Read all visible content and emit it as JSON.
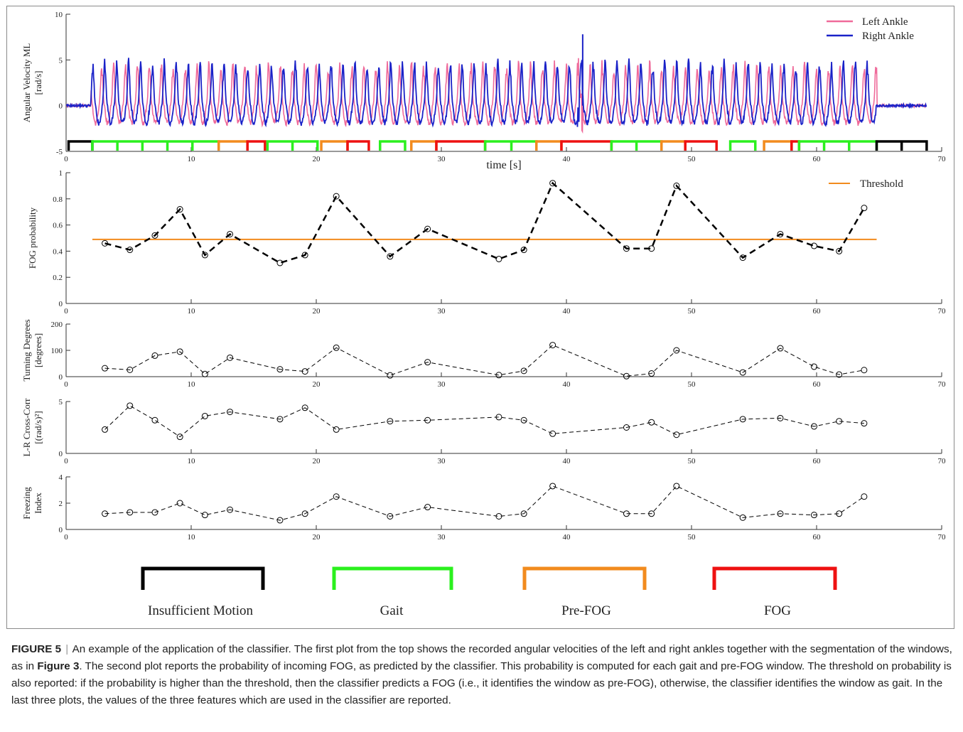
{
  "figure": {
    "panel1": {
      "type": "line",
      "ylabel": "Angular Velocity ML",
      "ylabel_unit": "[rad/s]",
      "xlabel": "time [s]",
      "xlim": [
        0,
        70
      ],
      "ylim": [
        -5,
        10
      ],
      "xticks": [
        "0",
        "10",
        "20",
        "30",
        "40",
        "50",
        "60",
        "70"
      ],
      "yticks": [
        "-5",
        "0",
        "5",
        "10"
      ],
      "legend": [
        {
          "name": "Left Ankle",
          "color": "#ef6a9a"
        },
        {
          "name": "Right Ankle",
          "color": "#1a22c8"
        }
      ],
      "segments": [
        {
          "start": 0.2,
          "end": 2.1,
          "cls": "insufficient",
          "ticks": []
        },
        {
          "start": 2.1,
          "end": 12.2,
          "cls": "gait",
          "ticks": [
            4.1,
            6.1,
            8.1,
            10.1
          ]
        },
        {
          "start": 12.2,
          "end": 14.5,
          "cls": "prefog",
          "ticks": []
        },
        {
          "start": 14.5,
          "end": 15.9,
          "cls": "fog",
          "ticks": []
        },
        {
          "start": 16.1,
          "end": 20.1,
          "cls": "gait",
          "ticks": [
            18.1
          ]
        },
        {
          "start": 20.4,
          "end": 22.5,
          "cls": "prefog",
          "ticks": []
        },
        {
          "start": 22.5,
          "end": 24.2,
          "cls": "fog",
          "ticks": []
        },
        {
          "start": 25.1,
          "end": 27.1,
          "cls": "gait",
          "ticks": []
        },
        {
          "start": 27.6,
          "end": 29.6,
          "cls": "prefog",
          "ticks": []
        },
        {
          "start": 29.6,
          "end": 33.5,
          "cls": "fog",
          "ticks": []
        },
        {
          "start": 33.5,
          "end": 37.6,
          "cls": "gait",
          "ticks": [
            35.6
          ]
        },
        {
          "start": 37.6,
          "end": 39.6,
          "cls": "prefog",
          "ticks": []
        },
        {
          "start": 39.6,
          "end": 43.6,
          "cls": "fog",
          "ticks": []
        },
        {
          "start": 43.6,
          "end": 47.6,
          "cls": "gait",
          "ticks": [
            45.6
          ]
        },
        {
          "start": 47.6,
          "end": 49.5,
          "cls": "prefog",
          "ticks": []
        },
        {
          "start": 49.5,
          "end": 52.0,
          "cls": "fog",
          "ticks": []
        },
        {
          "start": 53.1,
          "end": 55.1,
          "cls": "gait",
          "ticks": []
        },
        {
          "start": 55.8,
          "end": 58.0,
          "cls": "prefog",
          "ticks": []
        },
        {
          "start": 58.0,
          "end": 58.6,
          "cls": "fog",
          "ticks": []
        },
        {
          "start": 58.6,
          "end": 64.8,
          "cls": "gait",
          "ticks": [
            60.6,
            62.6
          ]
        },
        {
          "start": 64.8,
          "end": 68.8,
          "cls": "insufficient",
          "ticks": [
            66.8
          ]
        }
      ]
    },
    "panel2": {
      "type": "line",
      "ylabel": "FOG probability",
      "xlim": [
        0,
        70
      ],
      "ylim": [
        0,
        1
      ],
      "xticks": [
        "0",
        "10",
        "20",
        "30",
        "40",
        "50",
        "60",
        "70"
      ],
      "yticks": [
        "0",
        "0.2",
        "0.4",
        "0.6",
        "0.8",
        "1"
      ],
      "threshold": {
        "name": "Threshold",
        "value": 0.49,
        "x_start": 2.1,
        "x_end": 64.8,
        "color": "#f28b1e"
      },
      "x": [
        3.1,
        5.1,
        7.1,
        9.1,
        11.1,
        13.1,
        17.1,
        19.1,
        21.6,
        25.9,
        28.9,
        34.6,
        36.6,
        38.9,
        44.8,
        46.8,
        48.8,
        54.1,
        57.1,
        59.8,
        61.8,
        63.8
      ],
      "y": [
        0.46,
        0.41,
        0.52,
        0.72,
        0.37,
        0.53,
        0.31,
        0.37,
        0.82,
        0.36,
        0.57,
        0.34,
        0.41,
        0.92,
        0.42,
        0.42,
        0.9,
        0.35,
        0.53,
        0.44,
        0.4,
        0.73
      ]
    },
    "panel3": {
      "type": "line",
      "ylabel": "Turning Degrees",
      "ylabel_unit": "[degrees]",
      "xlim": [
        0,
        70
      ],
      "ylim": [
        0,
        200
      ],
      "xticks": [
        "0",
        "10",
        "20",
        "30",
        "40",
        "50",
        "60",
        "70"
      ],
      "yticks": [
        "0",
        "100",
        "200"
      ],
      "y": [
        32,
        26,
        80,
        95,
        10,
        72,
        28,
        20,
        110,
        5,
        55,
        6,
        22,
        120,
        2,
        12,
        100,
        16,
        108,
        38,
        8,
        25
      ]
    },
    "panel4": {
      "type": "line",
      "ylabel": "L-R Cross-Corr",
      "ylabel_unit": "[(rad/s)²]",
      "xlim": [
        0,
        70
      ],
      "ylim": [
        0,
        5
      ],
      "xticks": [
        "0",
        "10",
        "20",
        "30",
        "40",
        "50",
        "60",
        "70"
      ],
      "yticks": [
        "0",
        "5"
      ],
      "y": [
        2.3,
        4.6,
        3.2,
        1.6,
        3.6,
        4.0,
        3.3,
        4.4,
        2.3,
        3.1,
        3.2,
        3.5,
        3.2,
        1.9,
        2.5,
        3.0,
        1.8,
        3.3,
        3.4,
        2.6,
        3.1,
        2.9
      ]
    },
    "panel5": {
      "type": "line",
      "ylabel": "Freezing",
      "ylabel2": "Index",
      "xlim": [
        0,
        70
      ],
      "ylim": [
        0,
        4
      ],
      "xticks": [
        "0",
        "10",
        "20",
        "30",
        "40",
        "50",
        "60",
        "70"
      ],
      "yticks": [
        "0",
        "2",
        "4"
      ],
      "y": [
        1.2,
        1.3,
        1.3,
        2.0,
        1.1,
        1.5,
        0.7,
        1.2,
        2.5,
        1.0,
        1.7,
        1.0,
        1.2,
        3.3,
        1.2,
        1.2,
        3.3,
        0.9,
        1.2,
        1.1,
        1.2,
        2.5
      ]
    },
    "classes": [
      {
        "key": "insufficient",
        "label": "Insufficient Motion",
        "color": "#000000"
      },
      {
        "key": "gait",
        "label": "Gait",
        "color": "#2bf01e"
      },
      {
        "key": "prefog",
        "label": "Pre-FOG",
        "color": "#f28b1e"
      },
      {
        "key": "fog",
        "label": "FOG",
        "color": "#ee1111"
      }
    ]
  },
  "caption": {
    "label": "FIGURE 5",
    "separator": "|",
    "part1": "An example of the application of the classifier. The first plot from the top shows the recorded angular velocities of the left and right ankles together with the segmentation of the windows, as in ",
    "ref": "Figure 3",
    "part2": ". The second plot reports the probability of incoming FOG, as predicted by the classifier. This probability is computed for each gait and pre-FOG window. The threshold on probability is also reported: if the probability is higher than the threshold, then the classifier predicts a FOG (i.e., it identifies the window as pre-FOG), otherwise, the classifier identifies the window as gait. In the last three plots, the values of the three features which are used in the classifier are reported."
  }
}
